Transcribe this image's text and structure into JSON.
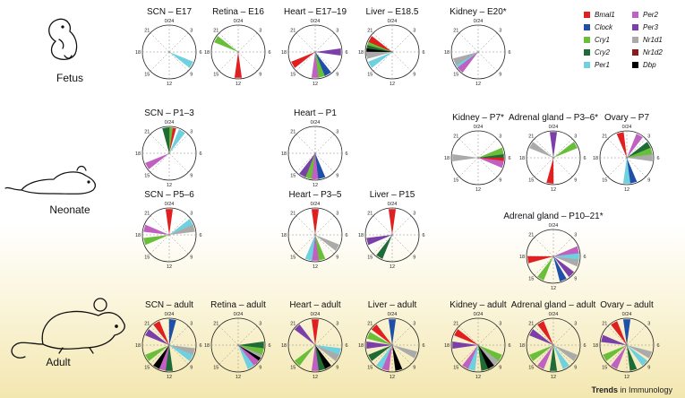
{
  "journal": {
    "prefix": "Trends",
    "suffix": " in Immunology"
  },
  "stages": [
    "Fetus",
    "Neonate",
    "Adult"
  ],
  "tick_labels": [
    "0/24",
    "3",
    "6",
    "9",
    "12",
    "15",
    "18",
    "21"
  ],
  "genes": [
    {
      "key": "Bmal1",
      "label": "Bmal1",
      "color": "#e02020"
    },
    {
      "key": "Clock",
      "label": "Clock",
      "color": "#1f4fa8"
    },
    {
      "key": "Cry1",
      "label": "Cry1",
      "color": "#6abf3a"
    },
    {
      "key": "Cry2",
      "label": "Cry2",
      "color": "#1e6b35"
    },
    {
      "key": "Per1",
      "label": "Per1",
      "color": "#6fd0df"
    },
    {
      "key": "Per2",
      "label": "Per2",
      "color": "#c060c0"
    },
    {
      "key": "Per3",
      "label": "Per3",
      "color": "#7a3fa8"
    },
    {
      "key": "Nr1d1",
      "label": "Nr1d1",
      "color": "#aaaaaa"
    },
    {
      "key": "Nr1d2",
      "label": "Nr1d2",
      "color": "#8b1a1a"
    },
    {
      "key": "Dbp",
      "label": "Dbp",
      "color": "#000000"
    }
  ],
  "panels": [
    {
      "title": "SCN – E17",
      "peaks": [
        {
          "gene": "Per1",
          "hour": 8
        }
      ]
    },
    {
      "title": "Retina – E16",
      "peaks": [
        {
          "gene": "Cry1",
          "hour": 20
        },
        {
          "gene": "Bmal1",
          "hour": 12
        }
      ]
    },
    {
      "title": "Heart – E17–19",
      "peaks": [
        {
          "gene": "Per3",
          "hour": 6
        },
        {
          "gene": "Bmal1",
          "hour": 16
        },
        {
          "gene": "Per2",
          "hour": 12
        },
        {
          "gene": "Cry1",
          "hour": 11
        },
        {
          "gene": "Clock",
          "hour": 10
        }
      ]
    },
    {
      "title": "Liver – E18.5",
      "peaks": [
        {
          "gene": "Bmal1",
          "hour": 20
        },
        {
          "gene": "Cry1",
          "hour": 19
        },
        {
          "gene": "Cry2",
          "hour": 18.5
        },
        {
          "gene": "Dbp",
          "hour": 18
        },
        {
          "gene": "Nr1d1",
          "hour": 17.5
        },
        {
          "gene": "Per1",
          "hour": 16
        }
      ]
    },
    {
      "title": "Kidney – E20*",
      "peaks": [
        {
          "gene": "Per1",
          "hour": 15.5
        },
        {
          "gene": "Nr1d1",
          "hour": 16.5
        },
        {
          "gene": "Per2",
          "hour": 15
        }
      ]
    },
    {
      "title": "SCN – P1–3",
      "peaks": [
        {
          "gene": "Bmal1",
          "hour": 0.5
        },
        {
          "gene": "Cry1",
          "hour": 0
        },
        {
          "gene": "Cry2",
          "hour": 23.5
        },
        {
          "gene": "Per1",
          "hour": 2
        },
        {
          "gene": "Per2",
          "hour": 16
        }
      ]
    },
    {
      "title": "Heart – P1",
      "peaks": [
        {
          "gene": "Bmal1",
          "hour": 12.5
        },
        {
          "gene": "Cry1",
          "hour": 13
        },
        {
          "gene": "Per2",
          "hour": 12
        },
        {
          "gene": "Per3",
          "hour": 14
        },
        {
          "gene": "Clock",
          "hour": 11
        }
      ]
    },
    {
      "title": "Kidney – P7*",
      "peaks": [
        {
          "gene": "Cry1",
          "hour": 5
        },
        {
          "gene": "Cry2",
          "hour": 6
        },
        {
          "gene": "Bmal1",
          "hour": 6.5
        },
        {
          "gene": "Per2",
          "hour": 7
        },
        {
          "gene": "Nr1d1",
          "hour": 18
        }
      ]
    },
    {
      "title": "Adrenal gland – P3–6*",
      "peaks": [
        {
          "gene": "Per3",
          "hour": 0
        },
        {
          "gene": "Nr1d1",
          "hour": 20
        },
        {
          "gene": "Cry1",
          "hour": 4
        },
        {
          "gene": "Bmal1",
          "hour": 12.5
        }
      ]
    },
    {
      "title": "Ovary – P7",
      "peaks": [
        {
          "gene": "Bmal1",
          "hour": 23
        },
        {
          "gene": "Per2",
          "hour": 2
        },
        {
          "gene": "Cry2",
          "hour": 4
        },
        {
          "gene": "Cry1",
          "hour": 5
        },
        {
          "gene": "Nr1d1",
          "hour": 6
        },
        {
          "gene": "Clock",
          "hour": 11
        },
        {
          "gene": "Per1",
          "hour": 12
        }
      ]
    },
    {
      "title": "SCN – P5–6",
      "peaks": [
        {
          "gene": "Bmal1",
          "hour": 0
        },
        {
          "gene": "Per1",
          "hour": 4
        },
        {
          "gene": "Nr1d1",
          "hour": 5
        },
        {
          "gene": "Per2",
          "hour": 19
        },
        {
          "gene": "Cry1",
          "hour": 17
        }
      ]
    },
    {
      "title": "Heart – P3–5",
      "peaks": [
        {
          "gene": "Bmal1",
          "hour": 0
        },
        {
          "gene": "Nr1d1",
          "hour": 8
        },
        {
          "gene": "Cry1",
          "hour": 11
        },
        {
          "gene": "Per2",
          "hour": 12
        },
        {
          "gene": "Per1",
          "hour": 13
        }
      ]
    },
    {
      "title": "Liver – P15",
      "peaks": [
        {
          "gene": "Bmal1",
          "hour": 0
        },
        {
          "gene": "Per3",
          "hour": 17
        },
        {
          "gene": "Cry2",
          "hour": 14
        }
      ]
    },
    {
      "title": "Adrenal gland – P10–21*",
      "peaks": [
        {
          "gene": "Bmal1",
          "hour": 17.5
        },
        {
          "gene": "Per1",
          "hour": 6
        },
        {
          "gene": "Per2",
          "hour": 5
        },
        {
          "gene": "Cry1",
          "hour": 14
        },
        {
          "gene": "Per3",
          "hour": 9
        },
        {
          "gene": "Nr1d1",
          "hour": 7
        },
        {
          "gene": "Clock",
          "hour": 10.5
        }
      ]
    },
    {
      "title": "SCN – adult",
      "peaks": [
        {
          "gene": "Clock",
          "hour": 0.5
        },
        {
          "gene": "Bmal1",
          "hour": 22
        },
        {
          "gene": "Per3",
          "hour": 20
        },
        {
          "gene": "Nr1d1",
          "hour": 7
        },
        {
          "gene": "Per1",
          "hour": 8
        },
        {
          "gene": "Cry1",
          "hour": 16
        },
        {
          "gene": "Dbp",
          "hour": 14
        },
        {
          "gene": "Per2",
          "hour": 13
        },
        {
          "gene": "Cry2",
          "hour": 12
        }
      ]
    },
    {
      "title": "Retina – adult",
      "peaks": [
        {
          "gene": "Cry2",
          "hour": 6
        },
        {
          "gene": "Cry1",
          "hour": 7
        },
        {
          "gene": "Nr1d1",
          "hour": 8
        },
        {
          "gene": "Dbp",
          "hour": 8.5
        },
        {
          "gene": "Per2",
          "hour": 9
        },
        {
          "gene": "Per1",
          "hour": 10
        }
      ]
    },
    {
      "title": "Heart – adult",
      "peaks": [
        {
          "gene": "Bmal1",
          "hour": 0
        },
        {
          "gene": "Per3",
          "hour": 21
        },
        {
          "gene": "Cry1",
          "hour": 15
        },
        {
          "gene": "Per1",
          "hour": 7
        },
        {
          "gene": "Nr1d1",
          "hour": 8
        },
        {
          "gene": "Dbp",
          "hour": 10
        },
        {
          "gene": "Cry2",
          "hour": 11
        },
        {
          "gene": "Per2",
          "hour": 12
        }
      ]
    },
    {
      "title": "Liver – adult",
      "peaks": [
        {
          "gene": "Cry1",
          "hour": 19.5
        },
        {
          "gene": "Bmal1",
          "hour": 21
        },
        {
          "gene": "Clock",
          "hour": 0
        },
        {
          "gene": "Per3",
          "hour": 18
        },
        {
          "gene": "Cry2",
          "hour": 16
        },
        {
          "gene": "Per1",
          "hour": 14
        },
        {
          "gene": "Per2",
          "hour": 13
        },
        {
          "gene": "Nr1d1",
          "hour": 7.5
        },
        {
          "gene": "Dbp",
          "hour": 11
        }
      ]
    },
    {
      "title": "Kidney – adult",
      "peaks": [
        {
          "gene": "Bmal1",
          "hour": 20
        },
        {
          "gene": "Per3",
          "hour": 18
        },
        {
          "gene": "Per2",
          "hour": 14
        },
        {
          "gene": "Per1",
          "hour": 13
        },
        {
          "gene": "Nr1d1",
          "hour": 9
        },
        {
          "gene": "Dbp",
          "hour": 10
        },
        {
          "gene": "Cry2",
          "hour": 11
        },
        {
          "gene": "Cry1",
          "hour": 8
        }
      ]
    },
    {
      "title": "Adrenal gland – adult",
      "peaks": [
        {
          "gene": "Bmal1",
          "hour": 22
        },
        {
          "gene": "Per3",
          "hour": 20
        },
        {
          "gene": "Cry1",
          "hour": 16
        },
        {
          "gene": "Per2",
          "hour": 14
        },
        {
          "gene": "Nr1d1",
          "hour": 8
        },
        {
          "gene": "Per1",
          "hour": 10
        },
        {
          "gene": "Cry2",
          "hour": 12
        }
      ]
    },
    {
      "title": "Ovary – adult",
      "peaks": [
        {
          "gene": "Clock",
          "hour": 0
        },
        {
          "gene": "Bmal1",
          "hour": 22
        },
        {
          "gene": "Per3",
          "hour": 19
        },
        {
          "gene": "Cry1",
          "hour": 16
        },
        {
          "gene": "Per2",
          "hour": 14
        },
        {
          "gene": "Nr1d1",
          "hour": 7.5
        },
        {
          "gene": "Per1",
          "hour": 9
        },
        {
          "gene": "Cry2",
          "hour": 11
        }
      ]
    }
  ]
}
